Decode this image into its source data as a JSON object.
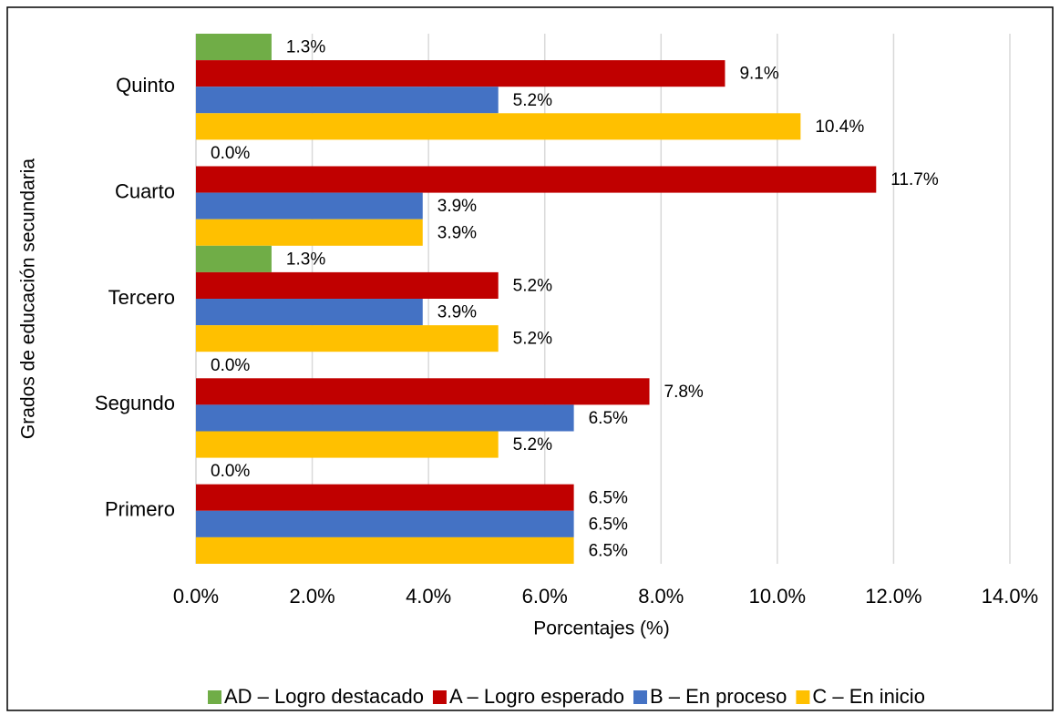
{
  "chart_data": {
    "type": "hbar",
    "categories": [
      "Quinto",
      "Cuarto",
      "Tercero",
      "Segundo",
      "Primero"
    ],
    "series": [
      {
        "name": "AD – Logro destacado",
        "color": "#70ad47",
        "values": [
          1.3,
          0.0,
          1.3,
          0.0,
          0.0
        ],
        "value_labels": [
          "1.3%",
          "0.0%",
          "1.3%",
          "0.0%",
          "0.0%"
        ]
      },
      {
        "name": "A – Logro esperado",
        "color": "#c00000",
        "values": [
          9.1,
          11.7,
          5.2,
          7.8,
          6.5
        ],
        "value_labels": [
          "9.1%",
          "11.7%",
          "5.2%",
          "7.8%",
          "6.5%"
        ]
      },
      {
        "name": "B – En proceso",
        "color": "#4472c4",
        "values": [
          5.2,
          3.9,
          3.9,
          6.5,
          6.5
        ],
        "value_labels": [
          "5.2%",
          "3.9%",
          "3.9%",
          "6.5%",
          "6.5%"
        ]
      },
      {
        "name": "C – En inicio",
        "color": "#ffc000",
        "values": [
          10.4,
          3.9,
          5.2,
          5.2,
          6.5
        ],
        "value_labels": [
          "10.4%",
          "3.9%",
          "5.2%",
          "5.2%",
          "6.5%"
        ]
      }
    ],
    "xlabel": "Porcentajes (%)",
    "ylabel": "Grados de educación secundaria",
    "xlim": [
      0,
      14
    ],
    "xticks": [
      {
        "value": 0,
        "label": "0.0%"
      },
      {
        "value": 2,
        "label": "2.0%"
      },
      {
        "value": 4,
        "label": "4.0%"
      },
      {
        "value": 6,
        "label": "6.0%"
      },
      {
        "value": 8,
        "label": "8.0%"
      },
      {
        "value": 10,
        "label": "10.0%"
      },
      {
        "value": 12,
        "label": "12.0%"
      },
      {
        "value": 14,
        "label": "14.0%"
      }
    ],
    "grid": true,
    "legend": "bottom"
  }
}
